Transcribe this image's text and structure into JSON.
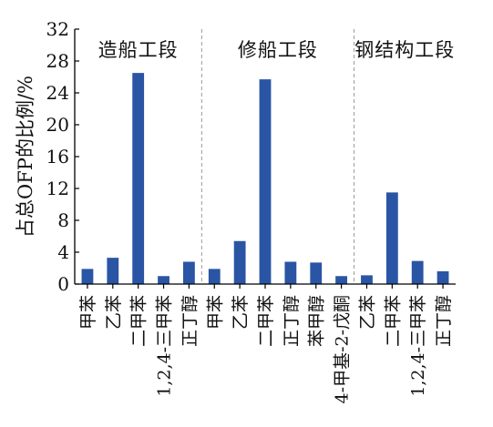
{
  "chart_data": {
    "type": "bar",
    "ylabel": "占总OFP的比例/%",
    "ylim": [
      0,
      32
    ],
    "yticks": [
      0,
      4,
      8,
      12,
      16,
      20,
      24,
      28,
      32
    ],
    "grid": false,
    "legend": "none",
    "bar_color": "#2a55a4",
    "groups": [
      {
        "name": "造船工段",
        "categories": [
          "甲苯",
          "乙苯",
          "二甲苯",
          "1,2,4-三甲苯",
          "正丁醇"
        ],
        "values": [
          1.9,
          3.3,
          26.5,
          1.0,
          2.8
        ]
      },
      {
        "name": "修船工段",
        "categories": [
          "甲苯",
          "乙苯",
          "二甲苯",
          "正丁醇",
          "苯甲醇",
          "4-甲基-2-戊酮"
        ],
        "values": [
          1.9,
          5.4,
          25.7,
          2.8,
          2.7,
          1.0
        ]
      },
      {
        "name": "钢结构工段",
        "categories": [
          "乙苯",
          "二甲苯",
          "1,2,4-三甲苯",
          "正丁醇"
        ],
        "values": [
          1.1,
          11.5,
          2.9,
          1.6
        ]
      }
    ]
  }
}
